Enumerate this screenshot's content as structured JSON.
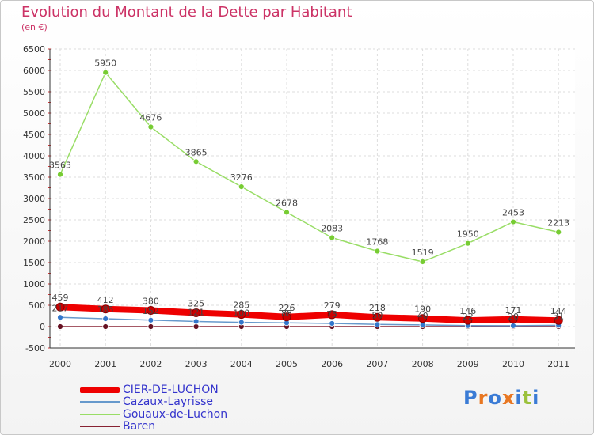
{
  "title": "Evolution du Montant de la Dette par Habitant",
  "subtitle": "(en €)",
  "brand": {
    "text": "Proxiti",
    "letters": [
      "P",
      "r",
      "o",
      "x",
      "i",
      "t",
      "i"
    ],
    "colors": [
      "#3a7bd5",
      "#e87722",
      "#3a7bd5",
      "#e87722",
      "#3a7bd5",
      "#9bc13c",
      "#3a7bd5"
    ]
  },
  "chart_data": {
    "type": "line",
    "x": [
      "2000",
      "2001",
      "2002",
      "2003",
      "2004",
      "2005",
      "2006",
      "2007",
      "2008",
      "2009",
      "2010",
      "2011"
    ],
    "ylim": [
      -500,
      6500
    ],
    "yticks": [
      "-500",
      "0",
      "500",
      "1000",
      "1500",
      "2000",
      "2500",
      "3000",
      "3500",
      "4000",
      "4500",
      "5000",
      "5500",
      "6000",
      "6500"
    ],
    "grid": true,
    "legend_position": "bottom-left",
    "series": [
      {
        "name": "CIER-DE-LUCHON",
        "color": "#ee0000",
        "width": 8,
        "values": [
          459,
          412,
          380,
          325,
          285,
          226,
          279,
          218,
          190,
          146,
          171,
          144
        ],
        "labels": [
          "459",
          "412",
          "380",
          "325",
          "285",
          "226",
          "279",
          "218",
          "190",
          "146",
          "171",
          "144"
        ]
      },
      {
        "name": "Cazaux-Layrisse",
        "color": "#6699cc",
        "width": 1.5,
        "values": [
          217,
          185,
          152,
          121,
          100,
          88,
          75,
          50,
          40,
          22,
          20,
          31
        ],
        "labels": [
          "217",
          "185",
          "152",
          "121",
          "100",
          "88",
          "75",
          "50",
          "40",
          "22",
          "20",
          "31"
        ]
      },
      {
        "name": "Gouaux-de-Luchon",
        "color": "#99dd66",
        "width": 1.5,
        "values": [
          3563,
          5950,
          4676,
          3865,
          3276,
          2678,
          2083,
          1768,
          1519,
          1950,
          2453,
          2213
        ],
        "labels": [
          "3563",
          "5950",
          "4676",
          "3865",
          "3276",
          "2678",
          "2083",
          "1768",
          "1519",
          "1950",
          "2453",
          "2213"
        ]
      },
      {
        "name": "Baren",
        "color": "#882233",
        "width": 1.5,
        "values": [
          0,
          0,
          0,
          0,
          0,
          0,
          0,
          0,
          0,
          0,
          0,
          0
        ],
        "labels": []
      }
    ]
  }
}
